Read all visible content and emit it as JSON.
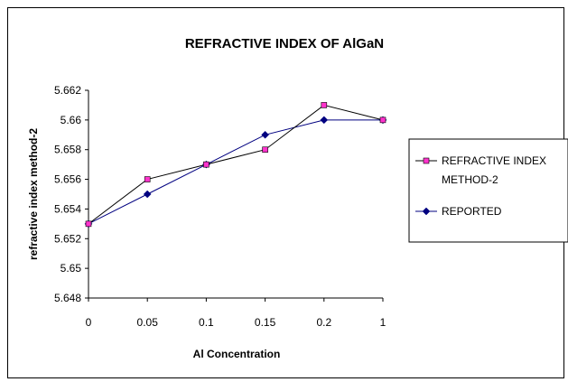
{
  "chart_data": {
    "type": "line",
    "title": "REFRACTIVE INDEX OF AlGaN",
    "xlabel": "Al Concentration",
    "ylabel": "refractive index method-2",
    "categories": [
      "0",
      "0.05",
      "0.1",
      "0.15",
      "0.2",
      "1"
    ],
    "ylim": [
      5.648,
      5.662
    ],
    "yticks": [
      "5.648",
      "5.65",
      "5.652",
      "5.654",
      "5.656",
      "5.658",
      "5.66",
      "5.662"
    ],
    "grid": false,
    "legend_position": "right",
    "series": [
      {
        "name": "REFRACTIVE INDEX METHOD-2",
        "legend_lines": [
          "REFRACTIVE INDEX",
          "METHOD-2"
        ],
        "values": [
          5.653,
          5.656,
          5.657,
          5.658,
          5.661,
          5.66
        ],
        "line_color": "#000000",
        "marker": "square",
        "marker_color": "#ff33cc"
      },
      {
        "name": "REPORTED",
        "legend_lines": [
          "REPORTED"
        ],
        "values": [
          5.653,
          5.655,
          5.657,
          5.659,
          5.66,
          5.66
        ],
        "line_color": "#000080",
        "marker": "diamond",
        "marker_color": "#000080"
      }
    ]
  }
}
